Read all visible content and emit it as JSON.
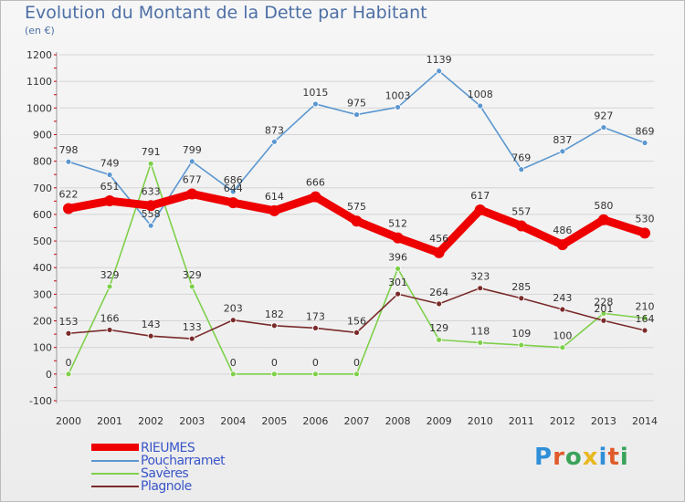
{
  "title": "Evolution du Montant de la Dette par Habitant",
  "subtitle": "(en €)",
  "logo": {
    "text": "Proxiti",
    "colors": [
      "#2f8fd8",
      "#e05a2a",
      "#3aa35a",
      "#e8b820",
      "#2f8fd8",
      "#e05a2a",
      "#3aa35a"
    ]
  },
  "chart_data": {
    "type": "line",
    "title": "Evolution du Montant de la Dette par Habitant",
    "subtitle": "(en €)",
    "xlabel": "",
    "ylabel": "",
    "ylim": [
      -100,
      1200
    ],
    "yticks": [
      -100,
      0,
      100,
      200,
      300,
      400,
      500,
      600,
      700,
      800,
      900,
      1000,
      1100,
      1200
    ],
    "x": [
      "2000",
      "2001",
      "2002",
      "2003",
      "2004",
      "2005",
      "2006",
      "2007",
      "2008",
      "2009",
      "2010",
      "2011",
      "2012",
      "2013",
      "2014"
    ],
    "grid": "horizontal",
    "legend": "bottom-left",
    "series": [
      {
        "name": "Poucharramet",
        "color": "#5b97d0",
        "values": [
          798,
          749,
          558,
          799,
          686,
          873,
          1015,
          975,
          1003,
          1139,
          1008,
          769,
          837,
          927,
          869
        ]
      },
      {
        "name": "Savères",
        "color": "#7ed04a",
        "values": [
          0,
          329,
          791,
          329,
          0,
          0,
          0,
          0,
          396,
          129,
          118,
          109,
          100,
          228,
          210
        ]
      },
      {
        "name": "Plagnole",
        "color": "#7a2a2a",
        "values": [
          153,
          166,
          143,
          133,
          203,
          182,
          173,
          156,
          301,
          264,
          323,
          285,
          243,
          201,
          164
        ]
      },
      {
        "name": "RIEUMES",
        "color": "#ee0000",
        "bold": true,
        "values": [
          622,
          651,
          633,
          677,
          644,
          614,
          666,
          575,
          512,
          456,
          617,
          557,
          486,
          580,
          530
        ]
      }
    ]
  },
  "legend": [
    {
      "label": "RIEUMES",
      "color": "#ee0000",
      "thick": true
    },
    {
      "label": "Poucharramet",
      "color": "#5b97d0",
      "thick": false
    },
    {
      "label": "Savères",
      "color": "#7ed04a",
      "thick": false
    },
    {
      "label": "Plagnole",
      "color": "#7a2a2a",
      "thick": false
    }
  ]
}
